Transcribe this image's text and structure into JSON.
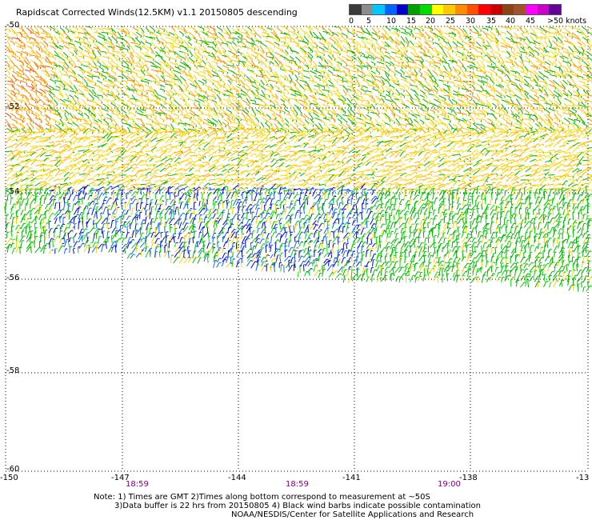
{
  "title": "Rapidscat Corrected Winds(12.5KM) v1.1 20150805 descending",
  "legend": {
    "colors": [
      "#3a3a3a",
      "#8c8c8c",
      "#00c8ff",
      "#0064ff",
      "#0000c8",
      "#00a000",
      "#00dc00",
      "#ffff00",
      "#ffc800",
      "#ff8c00",
      "#ff5000",
      "#ff0000",
      "#c80000",
      "#8b4513",
      "#a0522d",
      "#ff00ff",
      "#c800c8",
      "#640096"
    ],
    "labels": [
      "0",
      "5",
      "10",
      "15",
      "20",
      "25",
      "30",
      "35",
      "40",
      "45",
      ">50 knots"
    ]
  },
  "map": {
    "lat_labels": [
      "-50",
      "-52",
      "-54",
      "-56",
      "-58",
      "-60"
    ],
    "lon_labels": [
      "-150",
      "-147",
      "-144",
      "-141",
      "-138",
      "-13"
    ]
  },
  "times": [
    "18:59",
    "18:59",
    "19:00"
  ],
  "notes": [
    "Note: 1) Times are GMT 2)Times along bottom correspond to measurement at ~50S",
    "3)Data buffer is 22 hrs from 20150805 4) Black wind barbs indicate possible contamination",
    "NOAA/NESDIS/Center for Satellite Applications and Research"
  ]
}
